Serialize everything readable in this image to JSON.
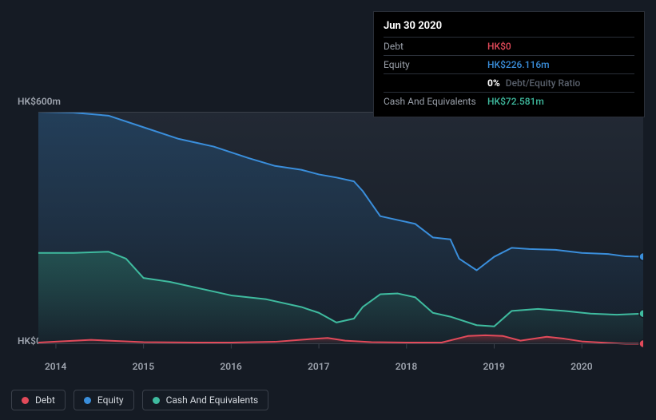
{
  "tooltip": {
    "date": "Jun 30 2020",
    "rows": [
      {
        "label": "Debt",
        "value": "HK$0",
        "color": "#e24a5a"
      },
      {
        "label": "Equity",
        "value": "HK$226.116m",
        "color": "#3a8edb"
      },
      {
        "label": "",
        "pct": "0%",
        "ratio_label": "Debt/Equity Ratio"
      },
      {
        "label": "Cash And Equivalents",
        "value": "HK$72.581m",
        "color": "#3fbb9f"
      }
    ]
  },
  "chart": {
    "background": "#151b24",
    "plot_bg_gradient_top": "#222934",
    "plot_bg_gradient_bottom": "#151b24",
    "y_top_label": "HK$600m",
    "y_bottom_label": "HK$0",
    "y_domain": [
      -30,
      600
    ],
    "x_years": [
      "2014",
      "2015",
      "2016",
      "2017",
      "2018",
      "2019",
      "2020"
    ],
    "x_domain": [
      2013.8,
      2020.7
    ],
    "line_width": 2,
    "series": {
      "equity": {
        "color": "#3a8edb",
        "fill_top": "rgba(36,80,120,0.55)",
        "fill_bottom": "rgba(36,80,120,0.05)",
        "points": [
          [
            2013.8,
            600
          ],
          [
            2014.2,
            598
          ],
          [
            2014.6,
            590
          ],
          [
            2015.0,
            560
          ],
          [
            2015.4,
            530
          ],
          [
            2015.8,
            510
          ],
          [
            2016.2,
            480
          ],
          [
            2016.5,
            460
          ],
          [
            2016.8,
            450
          ],
          [
            2017.0,
            438
          ],
          [
            2017.2,
            430
          ],
          [
            2017.4,
            420
          ],
          [
            2017.5,
            395
          ],
          [
            2017.7,
            330
          ],
          [
            2017.9,
            320
          ],
          [
            2018.1,
            310
          ],
          [
            2018.3,
            275
          ],
          [
            2018.5,
            270
          ],
          [
            2018.6,
            220
          ],
          [
            2018.8,
            190
          ],
          [
            2019.0,
            225
          ],
          [
            2019.2,
            248
          ],
          [
            2019.4,
            245
          ],
          [
            2019.7,
            243
          ],
          [
            2020.0,
            235
          ],
          [
            2020.3,
            232
          ],
          [
            2020.5,
            226
          ],
          [
            2020.7,
            225
          ]
        ]
      },
      "cash": {
        "color": "#3fbb9f",
        "fill_top": "rgba(40,110,95,0.55)",
        "fill_bottom": "rgba(40,110,95,0.05)",
        "points": [
          [
            2013.8,
            235
          ],
          [
            2014.2,
            235
          ],
          [
            2014.6,
            238
          ],
          [
            2014.8,
            220
          ],
          [
            2015.0,
            170
          ],
          [
            2015.3,
            160
          ],
          [
            2015.6,
            145
          ],
          [
            2016.0,
            125
          ],
          [
            2016.4,
            115
          ],
          [
            2016.8,
            95
          ],
          [
            2017.0,
            80
          ],
          [
            2017.2,
            55
          ],
          [
            2017.4,
            65
          ],
          [
            2017.5,
            95
          ],
          [
            2017.7,
            128
          ],
          [
            2017.9,
            130
          ],
          [
            2018.1,
            120
          ],
          [
            2018.3,
            80
          ],
          [
            2018.5,
            70
          ],
          [
            2018.8,
            48
          ],
          [
            2019.0,
            45
          ],
          [
            2019.2,
            85
          ],
          [
            2019.5,
            90
          ],
          [
            2019.8,
            85
          ],
          [
            2020.1,
            78
          ],
          [
            2020.4,
            75
          ],
          [
            2020.7,
            78
          ]
        ]
      },
      "debt": {
        "color": "#e24a5a",
        "fill_top": "rgba(170,50,60,0.5)",
        "fill_bottom": "rgba(170,50,60,0.05)",
        "points": [
          [
            2013.8,
            3
          ],
          [
            2014.4,
            10
          ],
          [
            2015.0,
            4
          ],
          [
            2015.6,
            3
          ],
          [
            2016.0,
            3
          ],
          [
            2016.5,
            5
          ],
          [
            2016.9,
            12
          ],
          [
            2017.1,
            15
          ],
          [
            2017.3,
            8
          ],
          [
            2017.6,
            4
          ],
          [
            2018.0,
            3
          ],
          [
            2018.4,
            3
          ],
          [
            2018.7,
            20
          ],
          [
            2018.9,
            22
          ],
          [
            2019.1,
            20
          ],
          [
            2019.3,
            8
          ],
          [
            2019.6,
            18
          ],
          [
            2019.8,
            13
          ],
          [
            2020.0,
            6
          ],
          [
            2020.3,
            2
          ],
          [
            2020.5,
            0
          ],
          [
            2020.7,
            0
          ]
        ]
      }
    }
  },
  "legend": [
    {
      "label": "Debt",
      "color": "#e24a5a"
    },
    {
      "label": "Equity",
      "color": "#3a8edb"
    },
    {
      "label": "Cash And Equivalents",
      "color": "#3fbb9f"
    }
  ]
}
